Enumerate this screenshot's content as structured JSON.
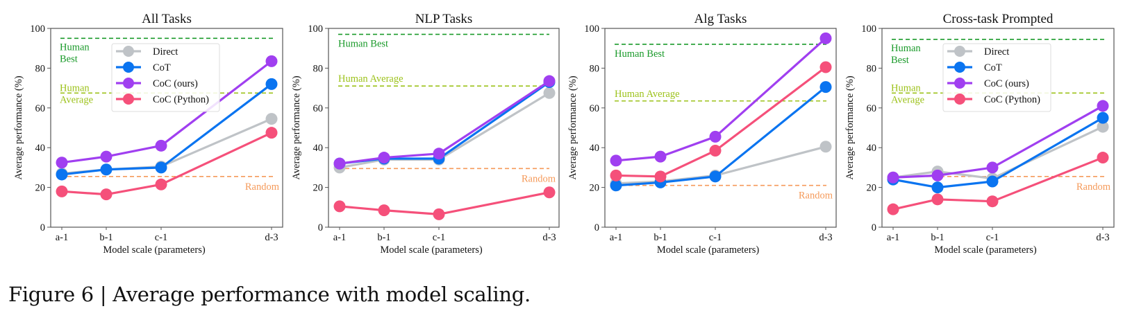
{
  "caption": "Figure 6 | Average performance with model scaling.",
  "series_styles": [
    {
      "name": "Direct",
      "color": "#bfc3c7"
    },
    {
      "name": "CoT",
      "color": "#0a74f0"
    },
    {
      "name": "CoC (ours)",
      "color": "#a03ff0"
    },
    {
      "name": "CoC (Python)",
      "color": "#f5507a"
    }
  ],
  "reference_styles": {
    "human_best": {
      "color": "#1a9a2a"
    },
    "human_average": {
      "color": "#9cc21a"
    },
    "random": {
      "color": "#f59a5a"
    }
  },
  "chart_data": [
    {
      "type": "line",
      "title": "All Tasks",
      "xlabel": "Model scale (parameters)",
      "ylabel": "Average performance (%)",
      "categories": [
        "a-1",
        "b-1",
        "c-1",
        "d-3"
      ],
      "ylim": [
        0,
        100
      ],
      "yticks": [
        0,
        20,
        40,
        60,
        80,
        100
      ],
      "grid": false,
      "legend": "upper-center",
      "series": [
        {
          "name": "Direct",
          "values": [
            27,
            29,
            30.5,
            54.5
          ]
        },
        {
          "name": "CoT",
          "values": [
            26.5,
            29,
            30,
            72
          ]
        },
        {
          "name": "CoC (ours)",
          "values": [
            32.5,
            35.5,
            41,
            83.5
          ]
        },
        {
          "name": "CoC (Python)",
          "values": [
            18,
            16.5,
            21.5,
            47.5
          ]
        }
      ],
      "reference_lines": [
        {
          "key": "human_best",
          "label": "Human Best",
          "label_lines": [
            "Human",
            "Best"
          ],
          "value": 95
        },
        {
          "key": "human_average",
          "label": "Human Average",
          "label_lines": [
            "Human",
            "Average"
          ],
          "value": 67.5
        },
        {
          "key": "random",
          "label": "Random",
          "label_lines": [
            "Random"
          ],
          "value": 25.5
        }
      ]
    },
    {
      "type": "line",
      "title": "NLP Tasks",
      "xlabel": "Model scale (parameters)",
      "ylabel": "Average performance (%)",
      "categories": [
        "a-1",
        "b-1",
        "c-1",
        "d-3"
      ],
      "ylim": [
        0,
        100
      ],
      "yticks": [
        0,
        20,
        40,
        60,
        80,
        100
      ],
      "grid": false,
      "legend": "none",
      "series": [
        {
          "name": "Direct",
          "values": [
            30,
            34,
            34,
            67.5
          ]
        },
        {
          "name": "CoT",
          "values": [
            32,
            34.5,
            34.5,
            73
          ]
        },
        {
          "name": "CoC (ours)",
          "values": [
            32,
            35,
            37,
            73.5
          ]
        },
        {
          "name": "CoC (Python)",
          "values": [
            10.5,
            8.5,
            6.5,
            17.5
          ]
        }
      ],
      "reference_lines": [
        {
          "key": "human_best",
          "label": "Human Best",
          "label_lines": [
            "Human Best"
          ],
          "value": 97
        },
        {
          "key": "human_average",
          "label": "Human Average",
          "label_lines": [
            "Human Average"
          ],
          "value": 71
        },
        {
          "key": "random",
          "label": "Random",
          "label_lines": [
            "Random"
          ],
          "value": 29.5
        }
      ]
    },
    {
      "type": "line",
      "title": "Alg Tasks",
      "xlabel": "Model scale (parameters)",
      "ylabel": "Average performance (%)",
      "categories": [
        "a-1",
        "b-1",
        "c-1",
        "d-3"
      ],
      "ylim": [
        0,
        100
      ],
      "yticks": [
        0,
        20,
        40,
        60,
        80,
        100
      ],
      "grid": false,
      "legend": "none",
      "series": [
        {
          "name": "Direct",
          "values": [
            22,
            23,
            26,
            40.5
          ]
        },
        {
          "name": "CoT",
          "values": [
            21,
            22.5,
            25.5,
            70.5
          ]
        },
        {
          "name": "CoC (ours)",
          "values": [
            33.5,
            35.5,
            45.5,
            95
          ]
        },
        {
          "name": "CoC (Python)",
          "values": [
            26,
            25.5,
            38.5,
            80.5
          ]
        }
      ],
      "reference_lines": [
        {
          "key": "human_best",
          "label": "Human Best",
          "label_lines": [
            "Human Best"
          ],
          "value": 92
        },
        {
          "key": "human_average",
          "label": "Human Average",
          "label_lines": [
            "Human Average"
          ],
          "value": 63.5
        },
        {
          "key": "random",
          "label": "Random",
          "label_lines": [
            "Random"
          ],
          "value": 21
        }
      ]
    },
    {
      "type": "line",
      "title": "Cross-task Prompted",
      "xlabel": "Model scale (parameters)",
      "ylabel": "Average performance (%)",
      "categories": [
        "a-1",
        "b-1",
        "c-1",
        "d-3"
      ],
      "ylim": [
        0,
        100
      ],
      "yticks": [
        0,
        20,
        40,
        60,
        80,
        100
      ],
      "grid": false,
      "legend": "upper-center",
      "series": [
        {
          "name": "Direct",
          "values": [
            25,
            28,
            24.5,
            50.5
          ]
        },
        {
          "name": "CoT",
          "values": [
            24,
            20,
            23,
            55
          ]
        },
        {
          "name": "CoC (ours)",
          "values": [
            25,
            26,
            30,
            61
          ]
        },
        {
          "name": "CoC (Python)",
          "values": [
            9,
            14,
            13,
            35
          ]
        }
      ],
      "reference_lines": [
        {
          "key": "human_best",
          "label": "Human Best",
          "label_lines": [
            "Human",
            "Best"
          ],
          "value": 94.5
        },
        {
          "key": "human_average",
          "label": "Human Average",
          "label_lines": [
            "Human",
            "Average"
          ],
          "value": 67.5
        },
        {
          "key": "random",
          "label": "Random",
          "label_lines": [
            "Random"
          ],
          "value": 25.5
        }
      ]
    }
  ]
}
